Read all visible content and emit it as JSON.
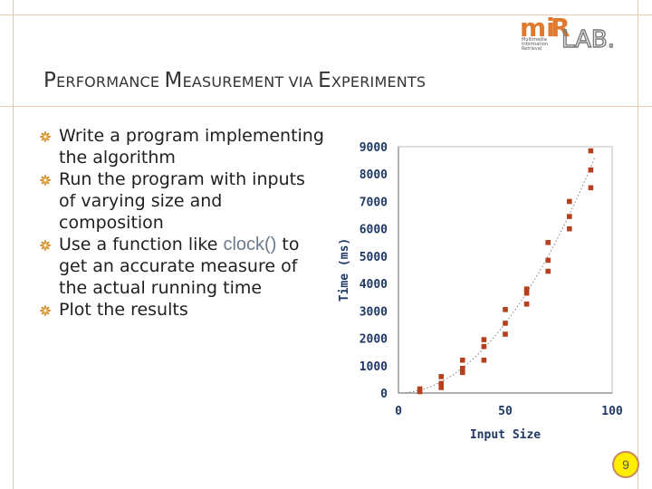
{
  "slide": {
    "title_parts": [
      {
        "big": "P",
        "small": "ERFORMANCE "
      },
      {
        "big": "M",
        "small": "EASUREMENT VIA "
      },
      {
        "big": "E",
        "small": "XPERIMENTS"
      }
    ],
    "bullets": [
      {
        "text": "Write a program implementing the algorithm"
      },
      {
        "text": "Run the program with inputs of varying size and composition"
      },
      {
        "pre": "Use a function like ",
        "code": "clock()",
        "post": " to get an accurate measure of the actual running time"
      },
      {
        "text": "Plot the results"
      }
    ],
    "page_number": "9",
    "logo_text": [
      "Multimedia",
      "Information",
      "Retrieval"
    ],
    "bullet_icon": "gear-icon"
  },
  "colors": {
    "accent": "#c0504d",
    "marker": "#b5401f",
    "axis_text": "#1f3864",
    "frame": "#e8c9b4"
  },
  "chart_data": {
    "type": "scatter",
    "xlabel": "Input Size",
    "ylabel": "Time (ms)",
    "xlim": [
      0,
      100
    ],
    "ylim": [
      0,
      9000
    ],
    "xticks": [
      0,
      50,
      100
    ],
    "yticks": [
      0,
      1000,
      2000,
      3000,
      4000,
      5000,
      6000,
      7000,
      8000,
      9000
    ],
    "trendline": "dotted",
    "points": [
      {
        "x": 10,
        "y": 150
      },
      {
        "x": 10,
        "y": 50
      },
      {
        "x": 20,
        "y": 600
      },
      {
        "x": 20,
        "y": 350
      },
      {
        "x": 20,
        "y": 200
      },
      {
        "x": 30,
        "y": 1200
      },
      {
        "x": 30,
        "y": 900
      },
      {
        "x": 30,
        "y": 750
      },
      {
        "x": 40,
        "y": 1950
      },
      {
        "x": 40,
        "y": 1700
      },
      {
        "x": 40,
        "y": 1200
      },
      {
        "x": 50,
        "y": 3050
      },
      {
        "x": 50,
        "y": 2550
      },
      {
        "x": 50,
        "y": 2150
      },
      {
        "x": 60,
        "y": 3800
      },
      {
        "x": 60,
        "y": 3650
      },
      {
        "x": 60,
        "y": 3250
      },
      {
        "x": 70,
        "y": 5500
      },
      {
        "x": 70,
        "y": 4850
      },
      {
        "x": 70,
        "y": 4450
      },
      {
        "x": 80,
        "y": 7000
      },
      {
        "x": 80,
        "y": 6450
      },
      {
        "x": 80,
        "y": 6000
      },
      {
        "x": 90,
        "y": 8850
      },
      {
        "x": 90,
        "y": 8150
      },
      {
        "x": 90,
        "y": 7500
      }
    ]
  }
}
